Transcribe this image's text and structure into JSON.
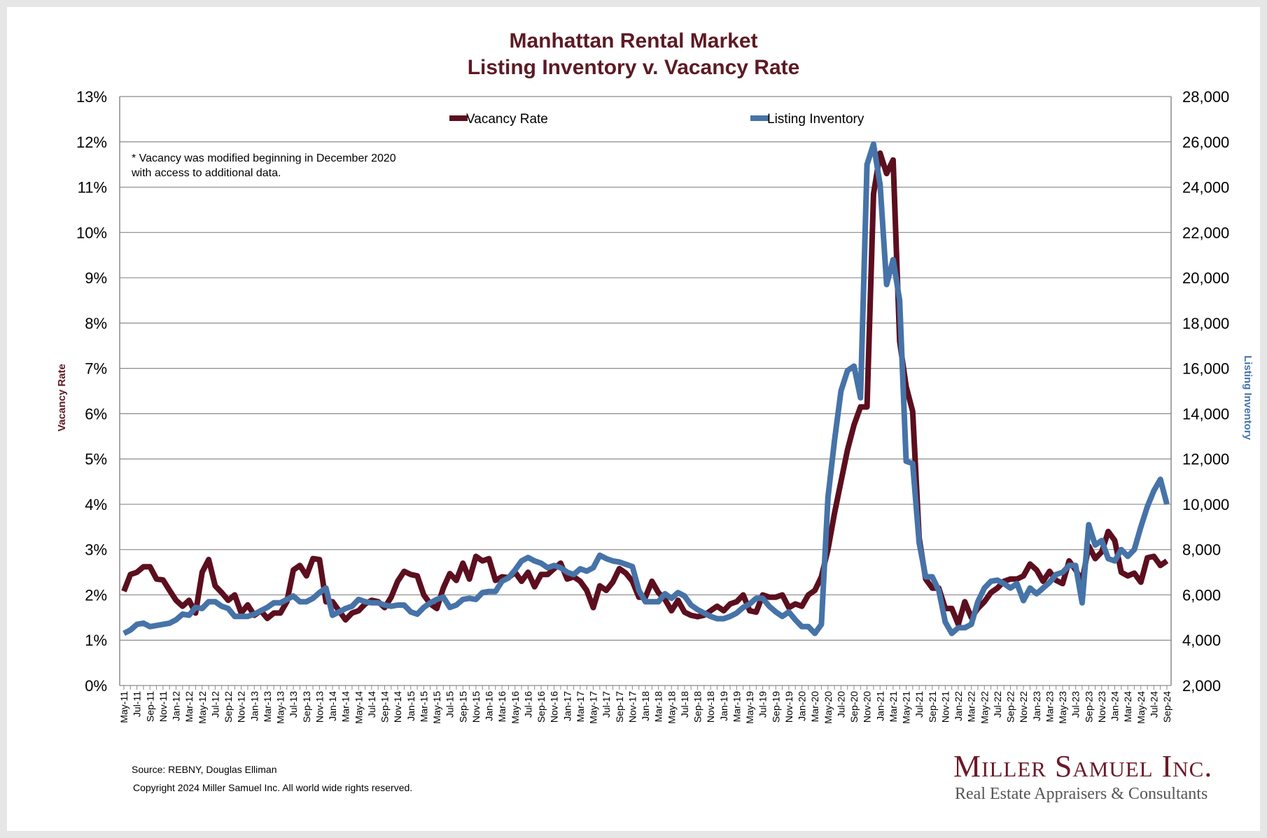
{
  "chart_data": {
    "type": "line",
    "title": [
      "Manhattan Rental Market",
      "Listing Inventory v. Vacancy Rate"
    ],
    "ylabel": "Vacancy Rate",
    "y2label": "Listing Inventory",
    "ylim": [
      0,
      13
    ],
    "y2lim": [
      2000,
      28000
    ],
    "yticks": [
      "0%",
      "1%",
      "2%",
      "3%",
      "4%",
      "5%",
      "6%",
      "7%",
      "8%",
      "9%",
      "10%",
      "11%",
      "12%",
      "13%"
    ],
    "y2ticks": [
      "2,000",
      "4,000",
      "6,000",
      "8,000",
      "10,000",
      "12,000",
      "14,000",
      "16,000",
      "18,000",
      "20,000",
      "22,000",
      "24,000",
      "26,000",
      "28,000"
    ],
    "start": "May-11",
    "end": "Sep-24",
    "grid": true,
    "legend": "top-center",
    "colors": {
      "vacancy": "#5c0f1e",
      "inventory": "#4673a8"
    },
    "series": [
      {
        "name": "Vacancy Rate",
        "axis": "left",
        "values": [
          2.08,
          2.45,
          2.5,
          2.62,
          2.62,
          2.35,
          2.33,
          2.1,
          1.88,
          1.75,
          1.88,
          1.6,
          2.5,
          2.78,
          2.2,
          2.05,
          1.88,
          2.0,
          1.6,
          1.78,
          1.55,
          1.65,
          1.48,
          1.6,
          1.6,
          1.85,
          2.55,
          2.65,
          2.42,
          2.8,
          2.78,
          1.85,
          1.85,
          1.65,
          1.45,
          1.6,
          1.65,
          1.8,
          1.88,
          1.85,
          1.72,
          1.95,
          2.3,
          2.52,
          2.45,
          2.42,
          2.0,
          1.8,
          1.7,
          2.15,
          2.47,
          2.32,
          2.7,
          2.35,
          2.85,
          2.75,
          2.8,
          2.32,
          2.4,
          2.38,
          2.5,
          2.3,
          2.5,
          2.18,
          2.45,
          2.45,
          2.58,
          2.7,
          2.35,
          2.4,
          2.3,
          2.1,
          1.72,
          2.2,
          2.1,
          2.28,
          2.58,
          2.48,
          2.3,
          1.95,
          1.95,
          2.3,
          2.05,
          1.9,
          1.65,
          1.88,
          1.62,
          1.55,
          1.52,
          1.55,
          1.65,
          1.75,
          1.65,
          1.8,
          1.85,
          2.0,
          1.65,
          1.62,
          2.0,
          1.95,
          1.95,
          2.0,
          1.72,
          1.8,
          1.75,
          2.0,
          2.1,
          2.4,
          3.0,
          3.8,
          4.5,
          5.2,
          5.75,
          6.15,
          6.15,
          10.85,
          11.75,
          11.3,
          11.6,
          7.6,
          6.6,
          6.05,
          3.25,
          2.35,
          2.15,
          2.15,
          1.7,
          1.7,
          1.35,
          1.85,
          1.5,
          1.7,
          1.85,
          2.05,
          2.15,
          2.3,
          2.35,
          2.35,
          2.42,
          2.68,
          2.55,
          2.3,
          2.52,
          2.32,
          2.25,
          2.75,
          2.55,
          2.3,
          3.08,
          2.8,
          2.95,
          3.4,
          3.2,
          2.5,
          2.42,
          2.48,
          2.28,
          2.82,
          2.85,
          2.65,
          2.75
        ]
      },
      {
        "name": "Listing Inventory",
        "axis": "right",
        "values": [
          4300,
          4450,
          4700,
          4750,
          4600,
          4650,
          4700,
          4750,
          4900,
          5150,
          5100,
          5450,
          5400,
          5700,
          5700,
          5500,
          5400,
          5050,
          5050,
          5050,
          5150,
          5300,
          5450,
          5650,
          5650,
          5800,
          5950,
          5700,
          5700,
          5850,
          6100,
          6300,
          5100,
          5250,
          5400,
          5500,
          5800,
          5700,
          5650,
          5650,
          5550,
          5500,
          5550,
          5550,
          5250,
          5150,
          5450,
          5650,
          5800,
          5900,
          5450,
          5550,
          5800,
          5850,
          5800,
          6100,
          6150,
          6150,
          6600,
          6750,
          7100,
          7500,
          7650,
          7500,
          7400,
          7200,
          7300,
          7200,
          7000,
          6900,
          7150,
          7050,
          7200,
          7750,
          7600,
          7500,
          7450,
          7350,
          7250,
          6200,
          5700,
          5700,
          5700,
          6050,
          5850,
          6100,
          5950,
          5550,
          5350,
          5200,
          5050,
          4950,
          4950,
          5050,
          5200,
          5450,
          5600,
          5850,
          5850,
          5500,
          5250,
          5050,
          5250,
          4900,
          4600,
          4600,
          4300,
          4700,
          10300,
          12800,
          15000,
          15900,
          16100,
          14700,
          25000,
          25900,
          24100,
          19700,
          20800,
          19000,
          11900,
          11800,
          8300,
          6800,
          6800,
          6200,
          4800,
          4300,
          4550,
          4550,
          4700,
          5700,
          6300,
          6600,
          6650,
          6500,
          6300,
          6500,
          5750,
          6300,
          6050,
          6300,
          6550,
          6900,
          7000,
          7300,
          7300,
          5650,
          9100,
          8200,
          8400,
          7600,
          7500,
          8000,
          7700,
          8000,
          9000,
          9900,
          10600,
          11100,
          10000
        ]
      }
    ]
  },
  "note": [
    "* Vacancy was modified beginning in December 2020",
    "with access to additional data."
  ],
  "source": "Source: REBNY, Douglas Elliman",
  "copyright": "Copyright 2024 Miller Samuel Inc.  All world wide rights reserved.",
  "logo": {
    "name": "Miller Samuel Inc.",
    "tagline": "Real Estate Appraisers & Consultants"
  }
}
